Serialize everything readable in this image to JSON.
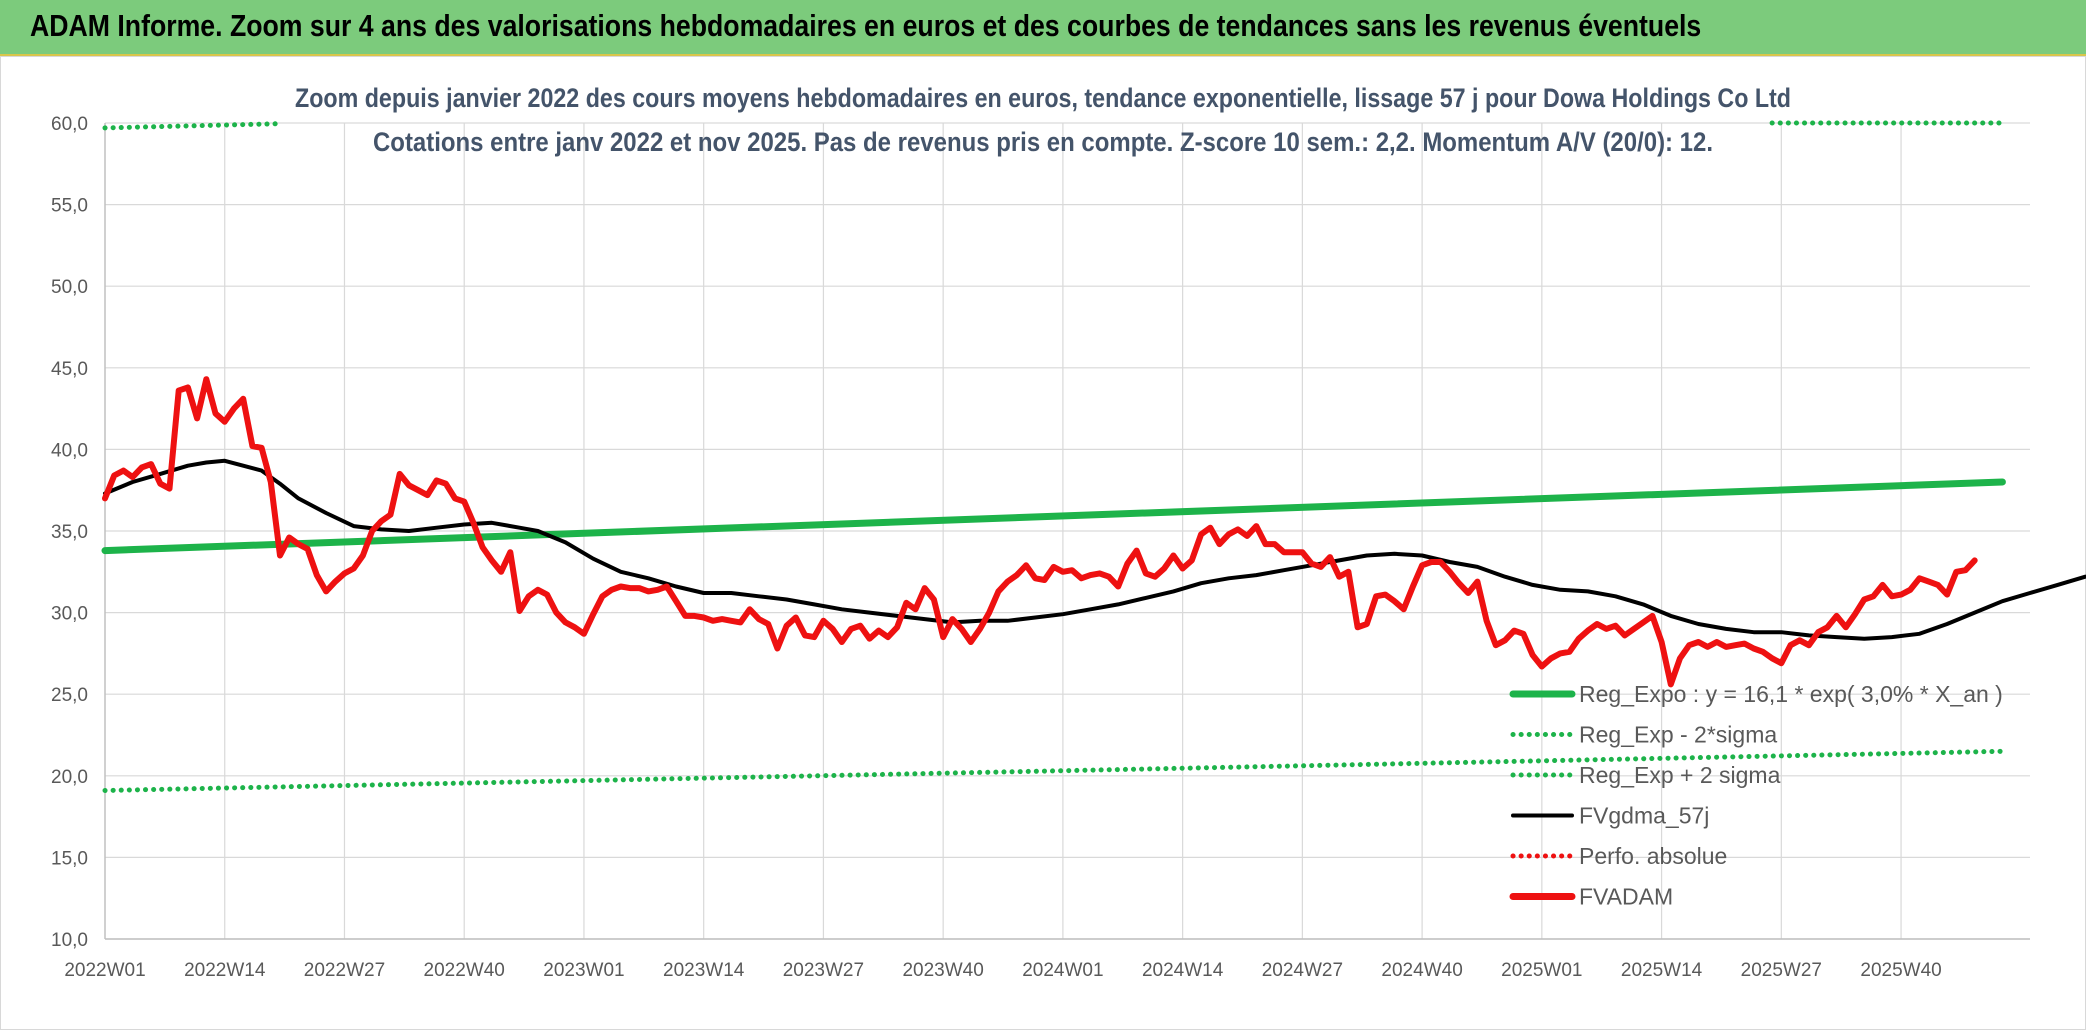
{
  "header": {
    "title": "ADAM Informe. Zoom sur 4 ans des valorisations hebdomadaires en euros et des courbes de tendances sans les revenus éventuels"
  },
  "colors": {
    "header_bg": "#7ccb7c",
    "reg_expo": "#1db34a",
    "fvgdma": "#000000",
    "fvadam": "#ee1111",
    "perfo": "#ee1111",
    "grid": "#d9d9d9"
  },
  "chart_data": {
    "type": "line",
    "title_lines": [
      "Zoom depuis janvier 2022 des cours moyens hebdomadaires en euros, tendance exponentielle, lissage 57 j pour Dowa Holdings Co Ltd",
      "Cotations entre janv 2022 et nov 2025. Pas de revenus pris en compte. Z-score 10 sem.: 2,2. Momentum A/V (20/0): 12."
    ],
    "ylim": [
      10,
      60
    ],
    "y_ticks": [
      "10,0",
      "15,0",
      "20,0",
      "25,0",
      "30,0",
      "35,0",
      "40,0",
      "45,0",
      "50,0",
      "55,0",
      "60,0"
    ],
    "x_ticks": [
      "2022W01",
      "2022W14",
      "2022W27",
      "2022W40",
      "2023W01",
      "2023W14",
      "2023W27",
      "2023W40",
      "2024W01",
      "2024W14",
      "2024W27",
      "2024W40",
      "2025W01",
      "2025W14",
      "2025W27",
      "2025W40"
    ],
    "grid": true,
    "legend_position": "bottom-right",
    "legend": [
      {
        "label": "Reg_Expo : y = 16,1 * exp( 3,0% *  X_an )",
        "style": "solid",
        "color": "#1db34a"
      },
      {
        "label": "Reg_Exp - 2*sigma",
        "style": "dotted",
        "color": "#1db34a"
      },
      {
        "label": "Reg_Exp + 2 sigma",
        "style": "dotted",
        "color": "#1db34a"
      },
      {
        "label": "FVgdma_57j",
        "style": "solid",
        "color": "#000000"
      },
      {
        "label": "Perfo. absolue",
        "style": "dotted",
        "color": "#ee1111"
      },
      {
        "label": "FVADAM",
        "style": "solid",
        "color": "#ee1111"
      }
    ],
    "series": [
      {
        "key": "reg_expo",
        "points": [
          [
            0,
            33.8
          ],
          [
            206,
            38.0
          ]
        ]
      },
      {
        "key": "reg_minus",
        "points": [
          [
            0,
            19.1
          ],
          [
            206,
            21.5
          ]
        ]
      },
      {
        "key": "reg_plus_left",
        "points": [
          [
            0,
            59.7
          ],
          [
            18.5,
            59.95
          ]
        ]
      },
      {
        "key": "reg_plus_right",
        "points": [
          [
            181,
            60
          ],
          [
            206,
            60
          ]
        ]
      },
      {
        "key": "fvgdma",
        "points": [
          [
            0,
            37.3
          ],
          [
            3,
            38.0
          ],
          [
            6,
            38.5
          ],
          [
            9,
            39.0
          ],
          [
            11,
            39.2
          ],
          [
            13,
            39.3
          ],
          [
            15,
            39.0
          ],
          [
            17,
            38.7
          ],
          [
            19,
            37.9
          ],
          [
            21,
            37.0
          ],
          [
            24,
            36.1
          ],
          [
            27,
            35.3
          ],
          [
            30,
            35.1
          ],
          [
            33,
            35.0
          ],
          [
            36,
            35.2
          ],
          [
            39,
            35.4
          ],
          [
            42,
            35.5
          ],
          [
            45,
            35.2
          ],
          [
            47,
            35.0
          ],
          [
            50,
            34.3
          ],
          [
            53,
            33.3
          ],
          [
            56,
            32.5
          ],
          [
            59,
            32.1
          ],
          [
            62,
            31.6
          ],
          [
            65,
            31.2
          ],
          [
            68,
            31.2
          ],
          [
            71,
            31.0
          ],
          [
            74,
            30.8
          ],
          [
            77,
            30.5
          ],
          [
            80,
            30.2
          ],
          [
            83,
            30.0
          ],
          [
            86,
            29.8
          ],
          [
            89,
            29.6
          ],
          [
            92,
            29.4
          ],
          [
            95,
            29.5
          ],
          [
            98,
            29.5
          ],
          [
            101,
            29.7
          ],
          [
            104,
            29.9
          ],
          [
            107,
            30.2
          ],
          [
            110,
            30.5
          ],
          [
            113,
            30.9
          ],
          [
            116,
            31.3
          ],
          [
            119,
            31.8
          ],
          [
            122,
            32.1
          ],
          [
            125,
            32.3
          ],
          [
            128,
            32.6
          ],
          [
            131,
            32.9
          ],
          [
            134,
            33.2
          ],
          [
            137,
            33.5
          ],
          [
            140,
            33.6
          ],
          [
            143,
            33.5
          ],
          [
            146,
            33.1
          ],
          [
            149,
            32.8
          ],
          [
            152,
            32.2
          ],
          [
            155,
            31.7
          ],
          [
            158,
            31.4
          ],
          [
            161,
            31.3
          ],
          [
            164,
            31.0
          ],
          [
            167,
            30.5
          ],
          [
            170,
            29.8
          ],
          [
            173,
            29.3
          ],
          [
            176,
            29.0
          ],
          [
            179,
            28.8
          ],
          [
            182,
            28.8
          ],
          [
            185,
            28.6
          ],
          [
            188,
            28.5
          ],
          [
            191,
            28.4
          ],
          [
            194,
            28.5
          ],
          [
            197,
            28.7
          ],
          [
            200,
            29.3
          ],
          [
            203,
            30.0
          ],
          [
            206,
            30.7
          ],
          [
            209,
            31.2
          ],
          [
            212,
            31.7
          ],
          [
            215,
            32.2
          ]
        ]
      },
      {
        "key": "fvadam",
        "points": [
          [
            0,
            37.0
          ],
          [
            1,
            38.4
          ],
          [
            2,
            38.7
          ],
          [
            3,
            38.3
          ],
          [
            4,
            38.9
          ],
          [
            5,
            39.1
          ],
          [
            6,
            37.9
          ],
          [
            7,
            37.6
          ],
          [
            8,
            43.6
          ],
          [
            9,
            43.8
          ],
          [
            10,
            41.9
          ],
          [
            11,
            44.3
          ],
          [
            12,
            42.2
          ],
          [
            13,
            41.7
          ],
          [
            14,
            42.5
          ],
          [
            15,
            43.1
          ],
          [
            16,
            40.2
          ],
          [
            17,
            40.1
          ],
          [
            18,
            38.0
          ],
          [
            19,
            33.5
          ],
          [
            20,
            34.6
          ],
          [
            21,
            34.2
          ],
          [
            22,
            33.9
          ],
          [
            23,
            32.3
          ],
          [
            24,
            31.3
          ],
          [
            25,
            31.9
          ],
          [
            26,
            32.4
          ],
          [
            27,
            32.7
          ],
          [
            28,
            33.5
          ],
          [
            29,
            35.0
          ],
          [
            30,
            35.6
          ],
          [
            31,
            36.0
          ],
          [
            32,
            38.5
          ],
          [
            33,
            37.8
          ],
          [
            34,
            37.5
          ],
          [
            35,
            37.2
          ],
          [
            36,
            38.1
          ],
          [
            37,
            37.9
          ],
          [
            38,
            37.0
          ],
          [
            39,
            36.8
          ],
          [
            40,
            35.5
          ],
          [
            41,
            34.0
          ],
          [
            42,
            33.2
          ],
          [
            43,
            32.5
          ],
          [
            44,
            33.7
          ],
          [
            45,
            30.1
          ],
          [
            46,
            31.0
          ],
          [
            47,
            31.4
          ],
          [
            48,
            31.1
          ],
          [
            49,
            30.0
          ],
          [
            50,
            29.4
          ],
          [
            51,
            29.1
          ],
          [
            52,
            28.7
          ],
          [
            53,
            29.9
          ],
          [
            54,
            31.0
          ],
          [
            55,
            31.4
          ],
          [
            56,
            31.6
          ],
          [
            57,
            31.5
          ],
          [
            58,
            31.5
          ],
          [
            59,
            31.3
          ],
          [
            60,
            31.4
          ],
          [
            61,
            31.6
          ],
          [
            62,
            30.7
          ],
          [
            63,
            29.8
          ],
          [
            64,
            29.8
          ],
          [
            65,
            29.7
          ],
          [
            66,
            29.5
          ],
          [
            67,
            29.6
          ],
          [
            68,
            29.5
          ],
          [
            69,
            29.4
          ],
          [
            70,
            30.2
          ],
          [
            71,
            29.6
          ],
          [
            72,
            29.3
          ],
          [
            73,
            27.8
          ],
          [
            74,
            29.2
          ],
          [
            75,
            29.7
          ],
          [
            76,
            28.6
          ],
          [
            77,
            28.5
          ],
          [
            78,
            29.5
          ],
          [
            79,
            29.0
          ],
          [
            80,
            28.2
          ],
          [
            81,
            29.0
          ],
          [
            82,
            29.2
          ],
          [
            83,
            28.4
          ],
          [
            84,
            28.9
          ],
          [
            85,
            28.5
          ],
          [
            86,
            29.1
          ],
          [
            87,
            30.6
          ],
          [
            88,
            30.2
          ],
          [
            89,
            31.5
          ],
          [
            90,
            30.8
          ],
          [
            91,
            28.5
          ],
          [
            92,
            29.6
          ],
          [
            93,
            29.0
          ],
          [
            94,
            28.2
          ],
          [
            95,
            29.0
          ],
          [
            96,
            30.0
          ],
          [
            97,
            31.3
          ],
          [
            98,
            31.9
          ],
          [
            99,
            32.3
          ],
          [
            100,
            32.9
          ],
          [
            101,
            32.1
          ],
          [
            102,
            32.0
          ],
          [
            103,
            32.8
          ],
          [
            104,
            32.5
          ],
          [
            105,
            32.6
          ],
          [
            106,
            32.1
          ],
          [
            107,
            32.3
          ],
          [
            108,
            32.4
          ],
          [
            109,
            32.2
          ],
          [
            110,
            31.6
          ],
          [
            111,
            33.0
          ],
          [
            112,
            33.8
          ],
          [
            113,
            32.4
          ],
          [
            114,
            32.2
          ],
          [
            115,
            32.7
          ],
          [
            116,
            33.5
          ],
          [
            117,
            32.7
          ],
          [
            118,
            33.2
          ],
          [
            119,
            34.8
          ],
          [
            120,
            35.2
          ],
          [
            121,
            34.2
          ],
          [
            122,
            34.8
          ],
          [
            123,
            35.1
          ],
          [
            124,
            34.7
          ],
          [
            125,
            35.3
          ],
          [
            126,
            34.2
          ],
          [
            127,
            34.2
          ],
          [
            128,
            33.7
          ],
          [
            129,
            33.7
          ],
          [
            130,
            33.7
          ],
          [
            131,
            33.0
          ],
          [
            132,
            32.8
          ],
          [
            133,
            33.4
          ],
          [
            134,
            32.2
          ],
          [
            135,
            32.5
          ],
          [
            136,
            29.1
          ],
          [
            137,
            29.3
          ],
          [
            138,
            31.0
          ],
          [
            139,
            31.1
          ],
          [
            140,
            30.7
          ],
          [
            141,
            30.2
          ],
          [
            142,
            31.6
          ],
          [
            143,
            32.9
          ],
          [
            144,
            33.1
          ],
          [
            145,
            33.1
          ],
          [
            146,
            32.5
          ],
          [
            147,
            31.8
          ],
          [
            148,
            31.2
          ],
          [
            149,
            31.9
          ],
          [
            150,
            29.5
          ],
          [
            151,
            28.0
          ],
          [
            152,
            28.3
          ],
          [
            153,
            28.9
          ],
          [
            154,
            28.7
          ],
          [
            155,
            27.4
          ],
          [
            156,
            26.7
          ],
          [
            157,
            27.2
          ],
          [
            158,
            27.5
          ],
          [
            159,
            27.6
          ],
          [
            160,
            28.4
          ],
          [
            161,
            28.9
          ],
          [
            162,
            29.3
          ],
          [
            163,
            29.0
          ],
          [
            164,
            29.2
          ],
          [
            165,
            28.6
          ],
          [
            166,
            29.0
          ],
          [
            167,
            29.4
          ],
          [
            168,
            29.8
          ],
          [
            169,
            28.2
          ],
          [
            170,
            25.6
          ],
          [
            171,
            27.2
          ],
          [
            172,
            28.0
          ],
          [
            173,
            28.2
          ],
          [
            174,
            27.9
          ],
          [
            175,
            28.2
          ],
          [
            176,
            27.9
          ],
          [
            177,
            28.0
          ],
          [
            178,
            28.1
          ],
          [
            179,
            27.8
          ],
          [
            180,
            27.6
          ],
          [
            181,
            27.2
          ],
          [
            182,
            26.9
          ],
          [
            183,
            28.0
          ],
          [
            184,
            28.3
          ],
          [
            185,
            28.0
          ],
          [
            186,
            28.8
          ],
          [
            187,
            29.1
          ],
          [
            188,
            29.8
          ],
          [
            189,
            29.1
          ],
          [
            190,
            29.9
          ],
          [
            191,
            30.8
          ],
          [
            192,
            31.0
          ],
          [
            193,
            31.7
          ],
          [
            194,
            31.0
          ],
          [
            195,
            31.1
          ],
          [
            196,
            31.4
          ],
          [
            197,
            32.1
          ],
          [
            198,
            31.9
          ],
          [
            199,
            31.7
          ],
          [
            200,
            31.1
          ],
          [
            201,
            32.5
          ],
          [
            202,
            32.6
          ],
          [
            203,
            33.2
          ]
        ]
      }
    ]
  }
}
